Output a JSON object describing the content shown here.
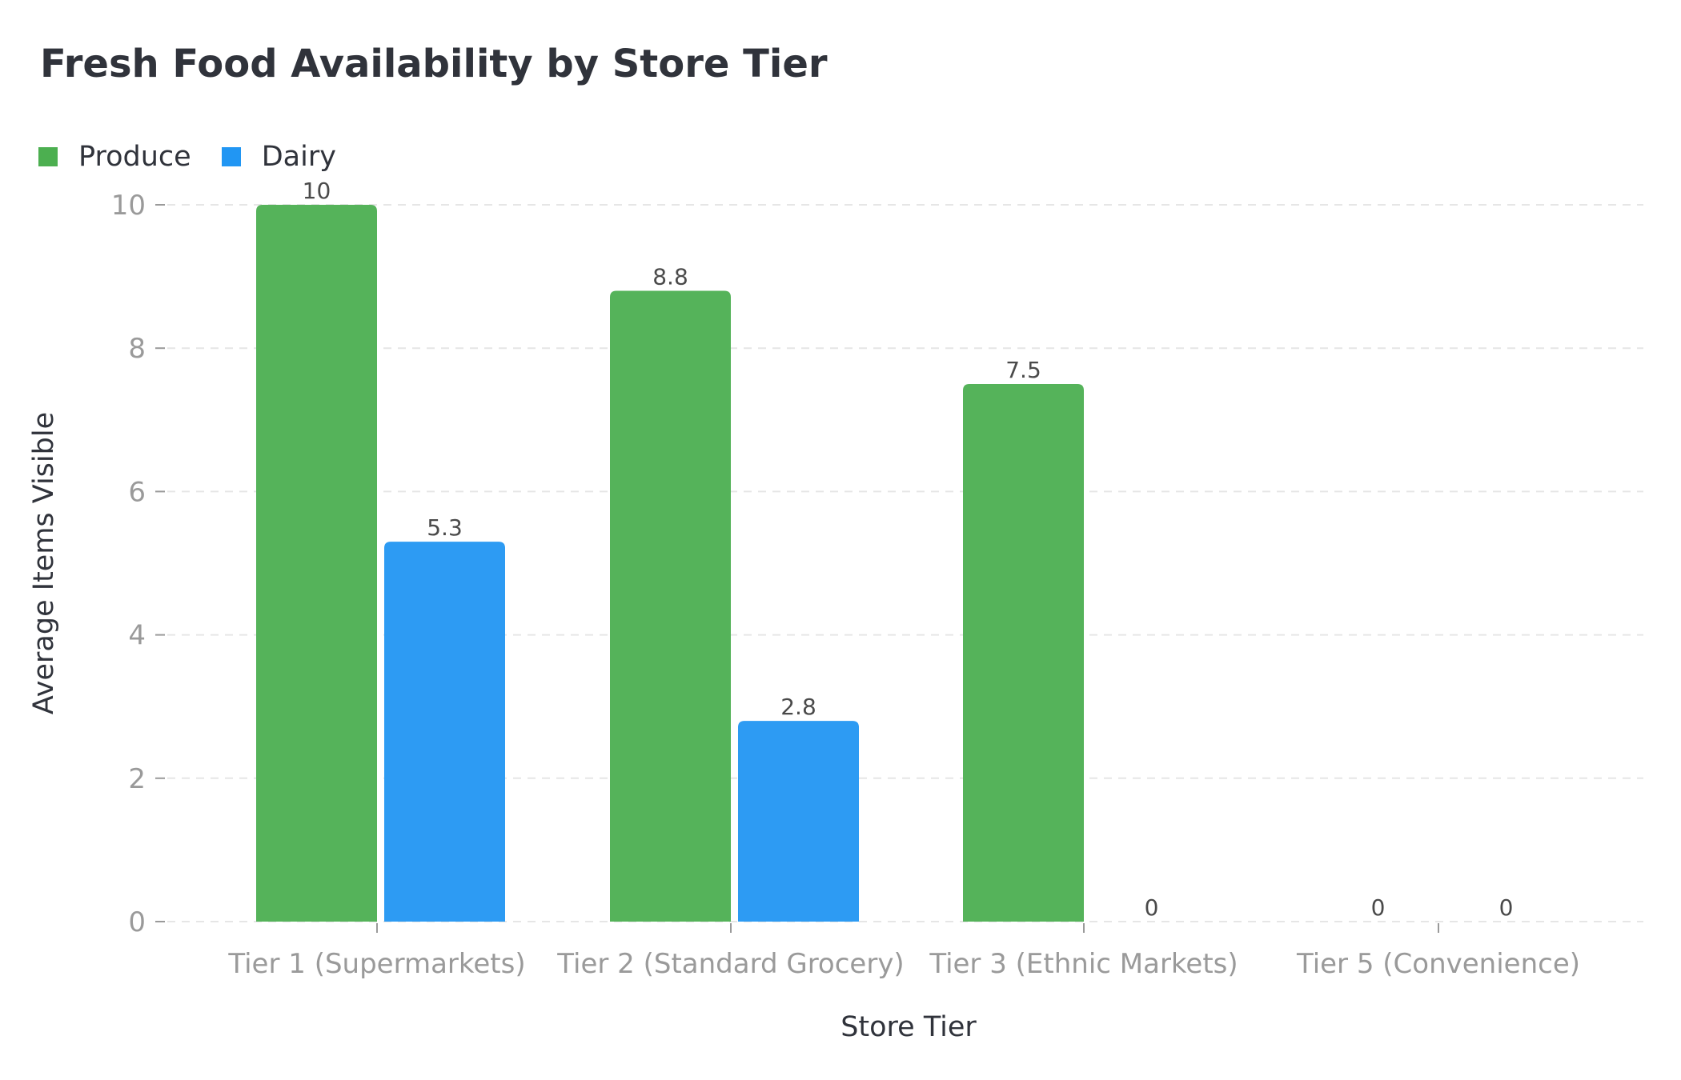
{
  "title": "Fresh Food Availability by Store Tier",
  "legend": [
    {
      "label": "Produce",
      "color": "#4caf50"
    },
    {
      "label": "Dairy",
      "color": "#2196f3"
    }
  ],
  "axes": {
    "xlabel": "Store Tier",
    "ylabel": "Average Items Visible",
    "yticks": [
      "0",
      "2",
      "4",
      "6",
      "8",
      "10"
    ]
  },
  "chart_data": {
    "type": "bar",
    "title": "Fresh Food Availability by Store Tier",
    "xlabel": "Store Tier",
    "ylabel": "Average Items Visible",
    "categories": [
      "Tier 1 (Supermarkets)",
      "Tier 2 (Standard Grocery)",
      "Tier 3 (Ethnic Markets)",
      "Tier 5 (Convenience)"
    ],
    "series": [
      {
        "name": "Produce",
        "color": "#55b35a",
        "values": [
          10,
          8.8,
          7.5,
          0
        ],
        "labels": [
          "10",
          "8.8",
          "7.5",
          "0"
        ]
      },
      {
        "name": "Dairy",
        "color": "#2d9bf3",
        "values": [
          5.3,
          2.8,
          0,
          0
        ],
        "labels": [
          "5.3",
          "2.8",
          "0",
          "0"
        ]
      }
    ],
    "ylim": [
      0,
      10
    ],
    "yticks": [
      0,
      2,
      4,
      6,
      8,
      10
    ],
    "grid": "horizontal dashed",
    "legend_position": "top-left"
  }
}
